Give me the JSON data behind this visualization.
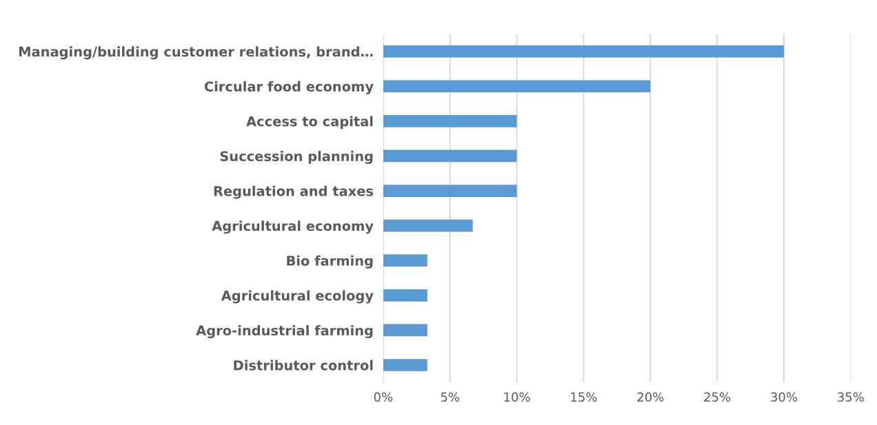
{
  "chart_data": {
    "type": "bar",
    "orientation": "horizontal",
    "categories": [
      "Managing/building customer relations, brand…",
      "Circular food economy",
      "Access to capital",
      "Succession planning",
      "Regulation and taxes",
      "Agricultural economy",
      "Bio farming",
      "Agricultural ecology",
      "Agro-industrial farming",
      "Distributor control"
    ],
    "values": [
      30,
      20,
      10,
      10,
      10,
      6.7,
      3.3,
      3.3,
      3.3,
      3.3
    ],
    "color": "#5b9bd5",
    "xlim": [
      0,
      35
    ],
    "xticks": [
      {
        "value": 0,
        "label": "0%"
      },
      {
        "value": 5,
        "label": "5%"
      },
      {
        "value": 10,
        "label": "10%"
      },
      {
        "value": 15,
        "label": "15%"
      },
      {
        "value": 20,
        "label": "20%"
      },
      {
        "value": 25,
        "label": "25%"
      },
      {
        "value": 30,
        "label": "30%"
      },
      {
        "value": 35,
        "label": "35%"
      }
    ],
    "grid": "x"
  }
}
